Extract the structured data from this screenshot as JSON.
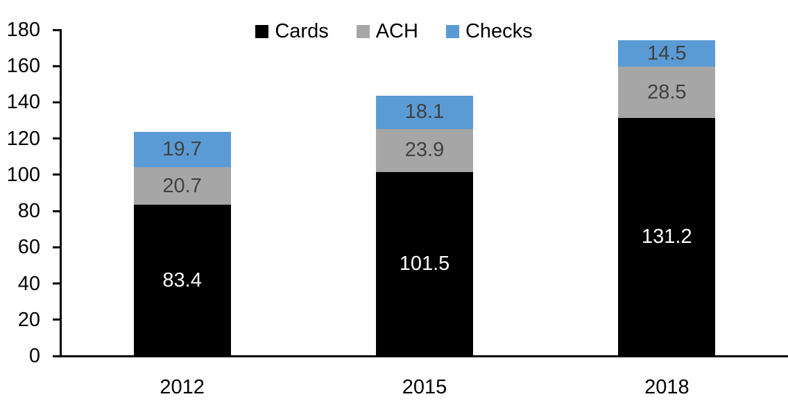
{
  "chart_data": {
    "type": "bar",
    "stacked": true,
    "title": "",
    "xlabel": "",
    "ylabel": "",
    "categories": [
      "2012",
      "2015",
      "2018"
    ],
    "series": [
      {
        "name": "Cards",
        "color": "#000000",
        "label_color": "#ffffff",
        "values": [
          83.4,
          101.5,
          131.2
        ]
      },
      {
        "name": "ACH",
        "color": "#a6a6a6",
        "label_color": "#404040",
        "values": [
          20.7,
          23.9,
          28.5
        ]
      },
      {
        "name": "Checks",
        "color": "#5b9bd5",
        "label_color": "#404040",
        "values": [
          19.7,
          18.1,
          14.5
        ]
      }
    ],
    "totals": [
      123.8,
      143.5,
      174.2
    ],
    "ylim": [
      0,
      180
    ],
    "ytick_step": 20,
    "ytick_labels": [
      "0",
      "20",
      "40",
      "60",
      "80",
      "100",
      "120",
      "140",
      "160",
      "180"
    ],
    "legend_position": "top-center",
    "legend_entries": [
      "Cards",
      "ACH",
      "Checks"
    ],
    "grid": false,
    "axis_color": "#000000"
  }
}
